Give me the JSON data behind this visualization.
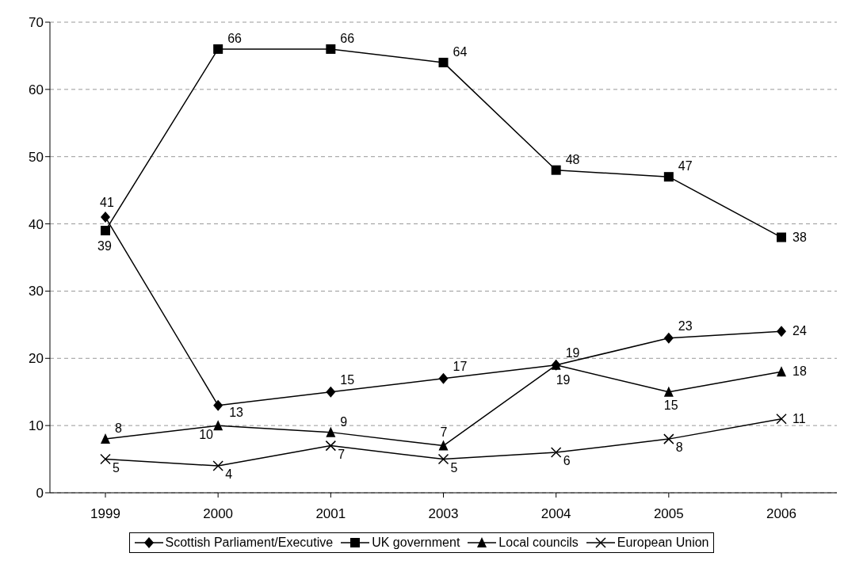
{
  "chart_data": {
    "type": "line",
    "categories": [
      "1999",
      "2000",
      "2001",
      "2003",
      "2004",
      "2005",
      "2006"
    ],
    "series": [
      {
        "name": "Scottish Parliament/Executive",
        "color": "#000000",
        "marker": "diamond",
        "values": [
          41,
          13,
          15,
          17,
          19,
          23,
          24
        ]
      },
      {
        "name": "UK government",
        "color": "#000000",
        "marker": "square",
        "values": [
          39,
          66,
          66,
          64,
          48,
          47,
          38
        ]
      },
      {
        "name": "Local councils",
        "color": "#000000",
        "marker": "triangle",
        "values": [
          8,
          10,
          9,
          7,
          19,
          15,
          18
        ]
      },
      {
        "name": "European Union",
        "color": "#000000",
        "marker": "cross",
        "values": [
          5,
          4,
          7,
          5,
          6,
          8,
          11
        ]
      }
    ],
    "ylim": [
      0,
      70
    ],
    "yticks": [
      0,
      10,
      20,
      30,
      40,
      50,
      60,
      70
    ],
    "grid": "y",
    "legend": "bottom",
    "data_labels": true,
    "line_style": "solid"
  }
}
